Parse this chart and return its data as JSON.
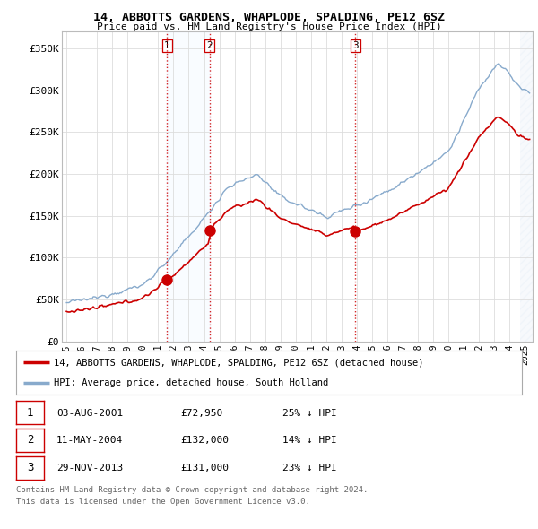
{
  "title": "14, ABBOTTS GARDENS, WHAPLODE, SPALDING, PE12 6SZ",
  "subtitle": "Price paid vs. HM Land Registry's House Price Index (HPI)",
  "ylabel_ticks": [
    "£0",
    "£50K",
    "£100K",
    "£150K",
    "£200K",
    "£250K",
    "£300K",
    "£350K"
  ],
  "ytick_values": [
    0,
    50000,
    100000,
    150000,
    200000,
    250000,
    300000,
    350000
  ],
  "ylim": [
    0,
    370000
  ],
  "xlim_start": 1994.7,
  "xlim_end": 2025.5,
  "red_line_color": "#cc0000",
  "blue_line_color": "#88aacc",
  "sale_markers": [
    {
      "year": 2001.58,
      "price": 72950,
      "label": "1"
    },
    {
      "year": 2004.36,
      "price": 132000,
      "label": "2"
    },
    {
      "year": 2013.91,
      "price": 131000,
      "label": "3"
    }
  ],
  "vline_color": "#cc0000",
  "shade_color": "#ddeeff",
  "hatch_color": "#ccddee",
  "legend_line1": "14, ABBOTTS GARDENS, WHAPLODE, SPALDING, PE12 6SZ (detached house)",
  "legend_line2": "HPI: Average price, detached house, South Holland",
  "table_rows": [
    {
      "num": "1",
      "date": "03-AUG-2001",
      "price": "£72,950",
      "hpi": "25% ↓ HPI"
    },
    {
      "num": "2",
      "date": "11-MAY-2004",
      "price": "£132,000",
      "hpi": "14% ↓ HPI"
    },
    {
      "num": "3",
      "date": "29-NOV-2013",
      "price": "£131,000",
      "hpi": "23% ↓ HPI"
    }
  ],
  "footnote1": "Contains HM Land Registry data © Crown copyright and database right 2024.",
  "footnote2": "This data is licensed under the Open Government Licence v3.0.",
  "background_color": "#ffffff",
  "plot_bg_color": "#ffffff",
  "grid_color": "#dddddd"
}
